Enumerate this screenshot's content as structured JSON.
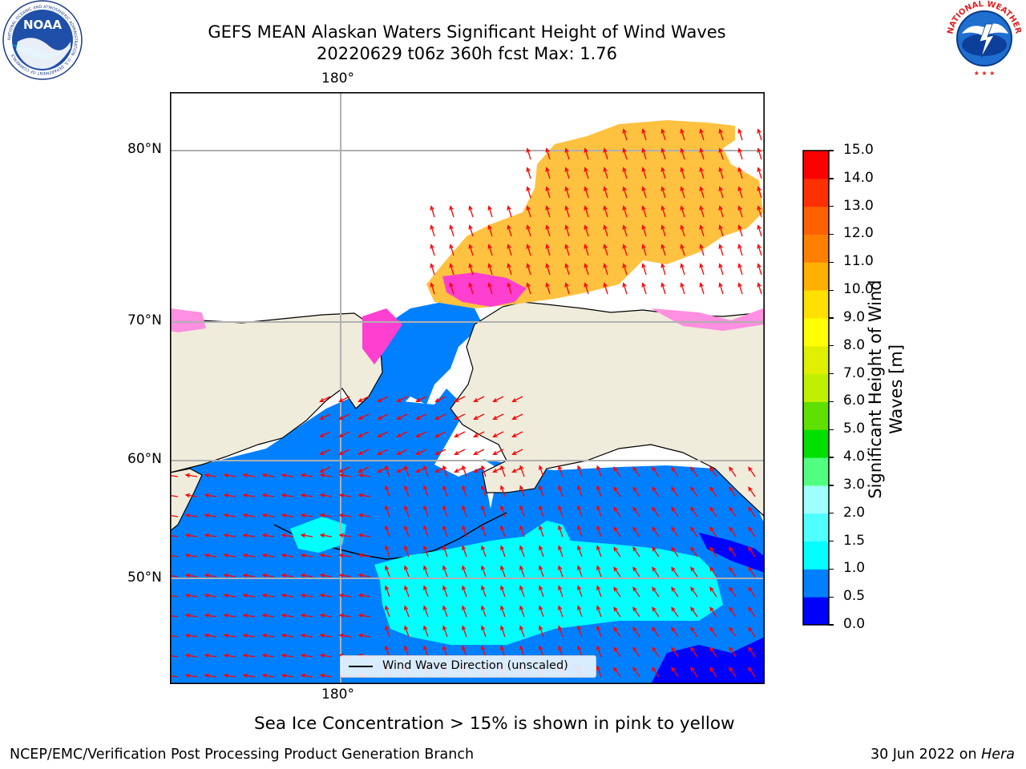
{
  "header": {
    "title_line1": "GEFS MEAN Alaskan Waters Significant Height of Wind Waves",
    "title_line2": "20220629 t06z 360h fcst   Max: 1.76"
  },
  "logos": {
    "left": {
      "icon": "noaa-logo",
      "text": "NOAA",
      "ring_text": "NATIONAL OCEANIC AND ATMOSPHERIC ADMINISTRATION · U.S. DEPARTMENT OF COMMERCE"
    },
    "right": {
      "icon": "nws-logo",
      "ring_text": "NATIONAL WEATHER SERVICE"
    }
  },
  "map": {
    "lon_label_top": "180°",
    "lon_label_bottom": "180°",
    "lat_labels": [
      "80°N",
      "70°N",
      "60°N",
      "50°N"
    ],
    "legend_label": "Wind Wave Direction (unscaled)",
    "colors": {
      "land": "#efecdc",
      "ocean_low": "#0000ff",
      "ocean_mid": "#0080ff",
      "ocean_high": "#00ffff",
      "ice_pink": "#ff3fd0",
      "ice_orange": "#ffc240",
      "arrow": "#ff0000",
      "grid": "#b0b0b0"
    }
  },
  "colorbar": {
    "title": "Significant Height of Wind Waves [m]",
    "title_line1": "Significant Height of Wind",
    "title_line2": "Waves [m]",
    "ticks": [
      "0.0",
      "0.5",
      "1.0",
      "1.5",
      "2.0",
      "3.0",
      "4.0",
      "5.0",
      "6.0",
      "7.0",
      "8.0",
      "9.0",
      "10.0",
      "11.0",
      "12.0",
      "13.0",
      "14.0",
      "15.0"
    ],
    "colors": [
      "#0000ff",
      "#0080ff",
      "#00ffff",
      "#50ffff",
      "#a0ffff",
      "#50ff80",
      "#00e000",
      "#60e000",
      "#c0f000",
      "#e0f000",
      "#ffff00",
      "#ffe000",
      "#ffb000",
      "#ff8000",
      "#ff6000",
      "#ff3000",
      "#ff0000"
    ]
  },
  "caption": "Sea Ice Concentration > 15% is shown in pink to yellow",
  "footer": {
    "left": "NCEP/EMC/Verification Post Processing Product Generation Branch",
    "date": "30 Jun 2022 on ",
    "host": "Hera"
  }
}
